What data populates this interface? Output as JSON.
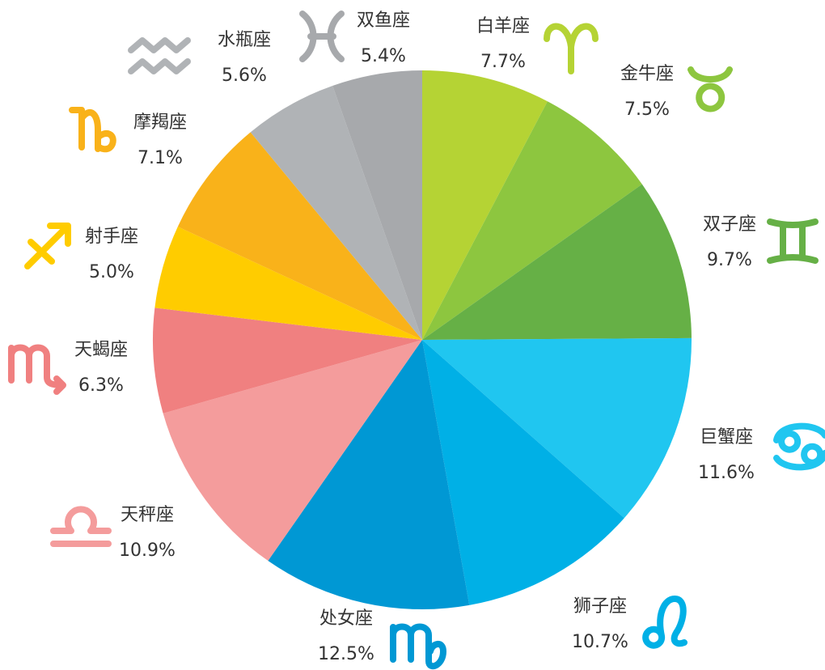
{
  "chart_data": {
    "type": "pie",
    "categories": [
      "白羊座",
      "金牛座",
      "双子座",
      "巨蟹座",
      "狮子座",
      "处女座",
      "天秤座",
      "天蝎座",
      "射手座",
      "摩羯座",
      "水瓶座",
      "双鱼座"
    ],
    "values": [
      7.7,
      7.5,
      9.7,
      11.6,
      10.7,
      12.5,
      10.9,
      6.3,
      5.0,
      7.1,
      5.6,
      5.4
    ],
    "value_labels": [
      "7.7%",
      "7.5%",
      "9.7%",
      "11.6%",
      "10.7%",
      "12.5%",
      "10.9%",
      "6.3%",
      "5.0%",
      "7.1%",
      "5.6%",
      "5.4%"
    ],
    "colors": [
      "#b5d334",
      "#8dc63f",
      "#66b046",
      "#20c6f0",
      "#00b0e6",
      "#0098d4",
      "#f49c9c",
      "#f08080",
      "#ffcc00",
      "#f9b21a",
      "#b0b3b6",
      "#a7a9ac"
    ]
  }
}
